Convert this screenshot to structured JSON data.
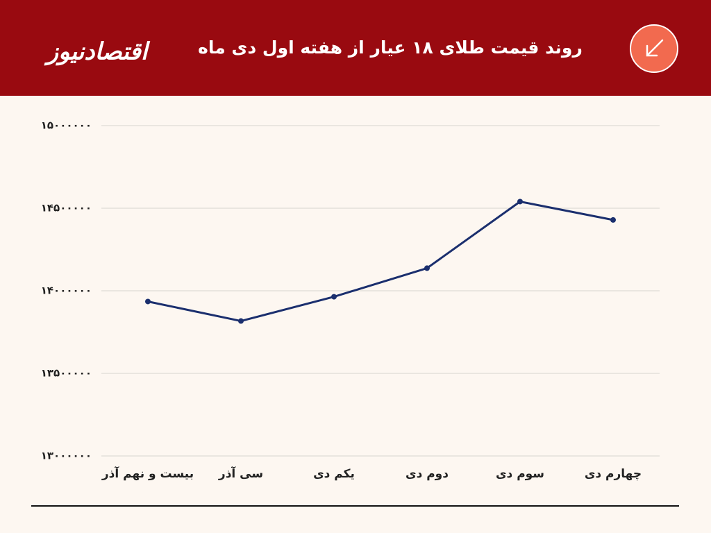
{
  "logo": "اقتصادنیوز",
  "chart_data": {
    "type": "line",
    "title": "روند قیمت طلای ۱۸ عیار از هفته اول دی ماه",
    "categories": [
      "بیست و نهم آذر",
      "سی آذر",
      "یکم دی",
      "دوم دی",
      "سوم دی",
      "چهارم دی"
    ],
    "series": [
      {
        "name": "قیمت طلای ۱۸ عیار",
        "color": "#1b2f6e",
        "values": [
          13935000,
          13817000,
          13964000,
          14137000,
          14540000,
          14429000
        ]
      }
    ],
    "ylim": [
      13000000,
      15000000
    ],
    "yticks": [
      {
        "value": 13000000,
        "label": "۱۳۰۰۰۰۰۰"
      },
      {
        "value": 13500000,
        "label": "۱۳۵۰۰۰۰۰"
      },
      {
        "value": 14000000,
        "label": "۱۴۰۰۰۰۰۰"
      },
      {
        "value": 14500000,
        "label": "۱۴۵۰۰۰۰۰"
      },
      {
        "value": 15000000,
        "label": "۱۵۰۰۰۰۰۰"
      }
    ],
    "grid": true
  }
}
